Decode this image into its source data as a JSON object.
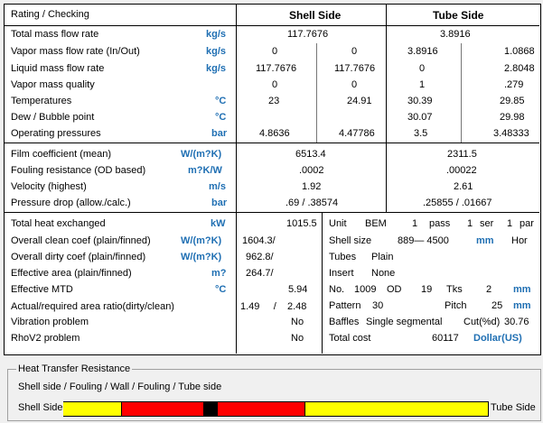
{
  "header": {
    "title": "Rating / Checking",
    "shell": "Shell Side",
    "tube": "Tube Side"
  },
  "sec1": [
    {
      "label": "Total mass flow rate",
      "unit": "kg/s",
      "s1": "117.7676",
      "s2": "",
      "t1": "3.8916",
      "t2": ""
    },
    {
      "label": "Vapor mass flow rate  (In/Out)",
      "unit": "kg/s",
      "s1": "0",
      "s2": "0",
      "t1": "3.8916",
      "t2": "1.0868"
    },
    {
      "label": "Liquid mass flow rate",
      "unit": "kg/s",
      "s1": "117.7676",
      "s2": "117.7676",
      "t1": "0",
      "t2": "2.8048"
    },
    {
      "label": "Vapor mass quality",
      "unit": "",
      "s1": "0",
      "s2": "0",
      "t1": "1",
      "t2": ".279"
    },
    {
      "label": "Temperatures",
      "unit": "°C",
      "s1": "23",
      "s2": "24.91",
      "t1": "30.39",
      "t2": "29.85"
    },
    {
      "label": "Dew / Bubble point",
      "unit": "°C",
      "s1": "",
      "s2": "",
      "t1": "30.07",
      "t2": "29.98"
    },
    {
      "label": "Operating pressures",
      "unit": "bar",
      "s1": "4.8636",
      "s2": "4.47786",
      "t1": "3.5",
      "t2": "3.48333"
    }
  ],
  "sec2": [
    {
      "label": "Film coefficient (mean)",
      "unit": "W/(m?K)",
      "shell": "6513.4",
      "tube": "2311.5"
    },
    {
      "label": "Fouling resistance (OD based)",
      "unit": "m?K/W",
      "shell": ".0002",
      "tube": ".00022"
    },
    {
      "label": "Velocity (highest)",
      "unit": "m/s",
      "shell": "1.92",
      "tube": "2.61"
    },
    {
      "label": "Pressure drop (allow./calc.)",
      "unit": "bar",
      "shell": ".69  /  .38574",
      "tube": ".25855  /  .01667"
    }
  ],
  "sec3": [
    {
      "label": "Total heat exchanged",
      "unit": "kW",
      "v1": "",
      "v2": "1015.5"
    },
    {
      "label": "Overall clean coef (plain/finned)",
      "unit": "W/(m?K)",
      "v1": "1604.3/",
      "v2": ""
    },
    {
      "label": "Overall dirty coef (plain/finned)",
      "unit": "W/(m?K)",
      "v1": "962.8/",
      "v2": ""
    },
    {
      "label": "Effective area (plain/finned)",
      "unit": "m?",
      "v1": "264.7/",
      "v2": ""
    },
    {
      "label": "Effective MTD",
      "unit": "°C",
      "v1": "",
      "v2": "5.94"
    },
    {
      "label": "Actual/required area ratio(dirty/clean)",
      "unit": "",
      "v1": "1.49     /",
      "v2": "2.48"
    },
    {
      "label": "Vibration problem",
      "unit": "",
      "v1": "",
      "v2": "No"
    },
    {
      "label": "RhoV2 problem",
      "unit": "",
      "v1": "",
      "v2": "No"
    }
  ],
  "geo": {
    "unit_label": "Unit",
    "unit_val": "BEM",
    "pass_n": "1",
    "pass_label": "pass",
    "ser_n": "1",
    "ser_label": "ser",
    "par_n": "1",
    "par_label": "par",
    "size_label": "Shell size",
    "size_val": "889—  4500",
    "size_unit": "mm",
    "size_orient": "Hor",
    "tubes_label": "Tubes",
    "tubes_val": "Plain",
    "insert_label": "Insert",
    "insert_val": "None",
    "no_label": "No.",
    "no_val": "1009",
    "od_label": "OD",
    "od_val": "19",
    "tks_label": "Tks",
    "tks_val": "2",
    "tks_unit": "mm",
    "pattern_label": "Pattern",
    "pattern_val": "30",
    "pitch_label": "Pitch",
    "pitch_val": "25",
    "pitch_unit": "mm",
    "baffles_label": "Baffles",
    "baffles_val": "Single segmental",
    "cut_label": "Cut(%d)",
    "cut_val": "30.76",
    "cost_label": "Total cost",
    "cost_val": "60117",
    "cost_unit": "Dollar(US)"
  },
  "htr": {
    "title": "Heat Transfer Resistance",
    "subtitle": "Shell side / Fouling / Wall / Fouling / Tube side",
    "left_label": "Shell Side",
    "right_label": "Tube Side",
    "segments": [
      {
        "name": "shell",
        "fraction": 0.138,
        "color": "#ffff00"
      },
      {
        "name": "shell-fouling",
        "fraction": 0.193,
        "color": "#ff0000"
      },
      {
        "name": "wall",
        "fraction": 0.031,
        "color": "#000000"
      },
      {
        "name": "tube-fouling",
        "fraction": 0.207,
        "color": "#ff0000"
      },
      {
        "name": "tube",
        "fraction": 0.431,
        "color": "#ffff00"
      }
    ]
  }
}
